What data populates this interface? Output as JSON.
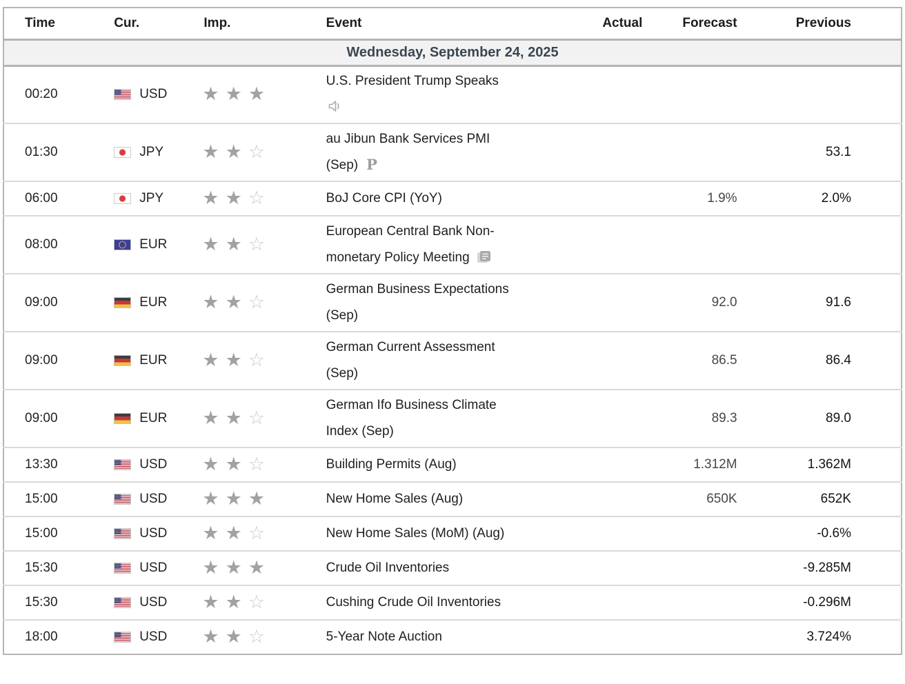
{
  "table": {
    "columns": [
      {
        "key": "time",
        "label": "Time"
      },
      {
        "key": "currency",
        "label": "Cur."
      },
      {
        "key": "importance",
        "label": "Imp."
      },
      {
        "key": "event",
        "label": "Event"
      },
      {
        "key": "actual",
        "label": "Actual"
      },
      {
        "key": "forecast",
        "label": "Forecast"
      },
      {
        "key": "previous",
        "label": "Previous"
      }
    ],
    "date_header": "Wednesday, September 24, 2025",
    "rows": [
      {
        "time": "00:20",
        "currency": "USD",
        "flag": "us",
        "importance": 3,
        "event": {
          "lines": [
            "U.S. President Trump Speaks"
          ],
          "icon": "speaker-icon",
          "icon_own_line": true
        },
        "actual": "",
        "forecast": "",
        "previous": ""
      },
      {
        "time": "01:30",
        "currency": "JPY",
        "flag": "jp",
        "importance": 2,
        "event": {
          "lines": [
            "au Jibun Bank Services PMI",
            "(Sep)"
          ],
          "icon": "preliminary-icon",
          "icon_own_line": false
        },
        "actual": "",
        "forecast": "",
        "previous": "53.1"
      },
      {
        "time": "06:00",
        "currency": "JPY",
        "flag": "jp",
        "importance": 2,
        "event": {
          "lines": [
            "BoJ Core CPI (YoY)"
          ],
          "icon": null,
          "icon_own_line": false
        },
        "actual": "",
        "forecast": "1.9%",
        "previous": "2.0%"
      },
      {
        "time": "08:00",
        "currency": "EUR",
        "flag": "eu",
        "importance": 2,
        "event": {
          "lines": [
            "European Central Bank Non-",
            "monetary Policy Meeting"
          ],
          "icon": "report-icon",
          "icon_own_line": false
        },
        "actual": "",
        "forecast": "",
        "previous": ""
      },
      {
        "time": "09:00",
        "currency": "EUR",
        "flag": "de",
        "importance": 2,
        "event": {
          "lines": [
            "German Business Expectations",
            "(Sep)"
          ],
          "icon": null,
          "icon_own_line": false
        },
        "actual": "",
        "forecast": "92.0",
        "previous": "91.6"
      },
      {
        "time": "09:00",
        "currency": "EUR",
        "flag": "de",
        "importance": 2,
        "event": {
          "lines": [
            "German Current Assessment",
            "(Sep)"
          ],
          "icon": null,
          "icon_own_line": false
        },
        "actual": "",
        "forecast": "86.5",
        "previous": "86.4"
      },
      {
        "time": "09:00",
        "currency": "EUR",
        "flag": "de",
        "importance": 2,
        "event": {
          "lines": [
            "German Ifo Business Climate",
            "Index (Sep)"
          ],
          "icon": null,
          "icon_own_line": false
        },
        "actual": "",
        "forecast": "89.3",
        "previous": "89.0"
      },
      {
        "time": "13:30",
        "currency": "USD",
        "flag": "us",
        "importance": 2,
        "event": {
          "lines": [
            "Building Permits (Aug)"
          ],
          "icon": null,
          "icon_own_line": false
        },
        "actual": "",
        "forecast": "1.312M",
        "previous": "1.362M"
      },
      {
        "time": "15:00",
        "currency": "USD",
        "flag": "us",
        "importance": 3,
        "event": {
          "lines": [
            "New Home Sales (Aug)"
          ],
          "icon": null,
          "icon_own_line": false
        },
        "actual": "",
        "forecast": "650K",
        "previous": "652K"
      },
      {
        "time": "15:00",
        "currency": "USD",
        "flag": "us",
        "importance": 2,
        "event": {
          "lines": [
            "New Home Sales (MoM) (Aug)"
          ],
          "icon": null,
          "icon_own_line": false
        },
        "actual": "",
        "forecast": "",
        "previous": "-0.6%"
      },
      {
        "time": "15:30",
        "currency": "USD",
        "flag": "us",
        "importance": 3,
        "event": {
          "lines": [
            "Crude Oil Inventories"
          ],
          "icon": null,
          "icon_own_line": false
        },
        "actual": "",
        "forecast": "",
        "previous": "-9.285M"
      },
      {
        "time": "15:30",
        "currency": "USD",
        "flag": "us",
        "importance": 2,
        "event": {
          "lines": [
            "Cushing Crude Oil Inventories"
          ],
          "icon": null,
          "icon_own_line": false
        },
        "actual": "",
        "forecast": "",
        "previous": "-0.296M"
      },
      {
        "time": "18:00",
        "currency": "USD",
        "flag": "us",
        "importance": 2,
        "event": {
          "lines": [
            "5-Year Note Auction"
          ],
          "icon": null,
          "icon_own_line": false
        },
        "actual": "",
        "forecast": "",
        "previous": "3.724%"
      }
    ],
    "importance_max": 3
  },
  "colors": {
    "header_text": "#1c1c1c",
    "date_bg": "#f2f2f2",
    "date_text": "#3a4652",
    "border_outer": "#b5b5b5",
    "border_date": "#b3b3b3",
    "row_divider": "#d9d9d9",
    "star_filled": "#a2a2a2",
    "star_empty": "#c9c9c9",
    "forecast_text": "#474747",
    "previous_text": "#141414",
    "event_text": "#1f1f1f",
    "flag_us_canton": "#3c3b6e",
    "flag_us_stripe": "#b22234",
    "flag_jp_circle": "#dd3b3f",
    "flag_eu_field": "#3a3e96",
    "flag_eu_star": "#e8c54a",
    "flag_de_black": "#3d3d3d",
    "flag_de_red": "#cd3438",
    "flag_de_gold": "#eec43e"
  }
}
